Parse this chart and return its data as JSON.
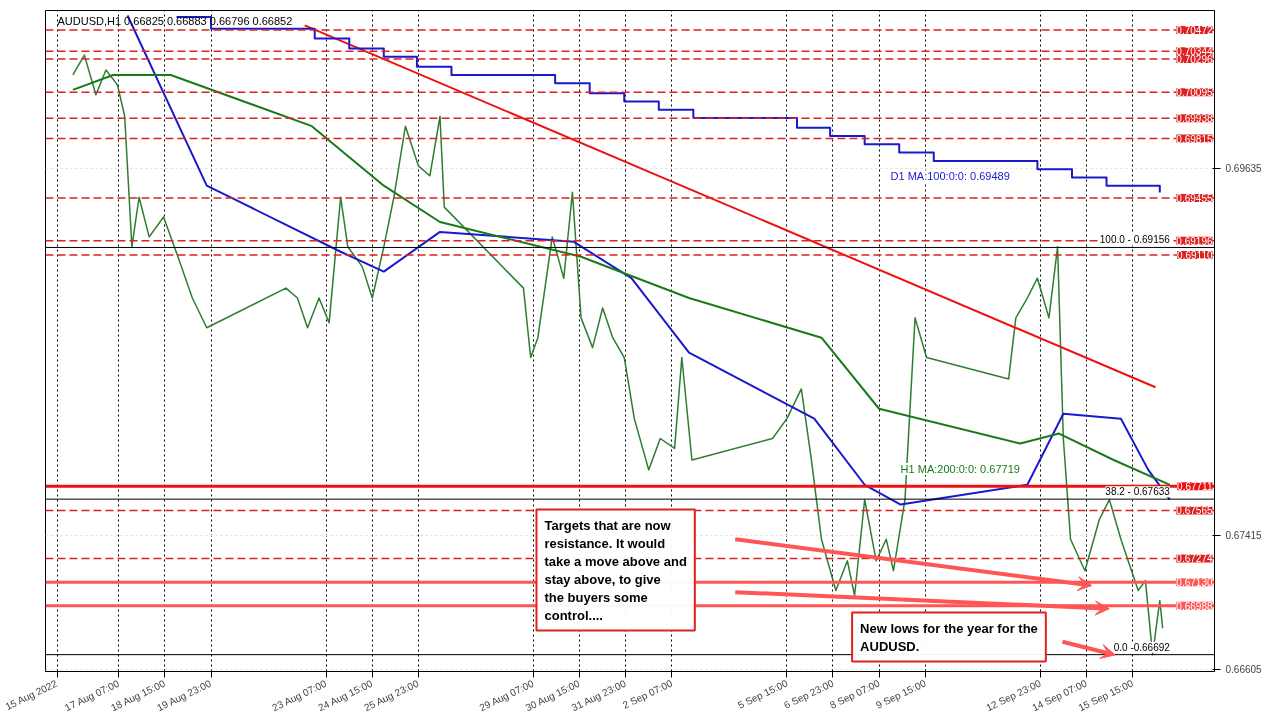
{
  "chart_data": {
    "type": "line",
    "title": "AUDUSD,H1 0.66825 0.66883 0.66796 0.66852",
    "xlim": [
      "2022-08-15T04:00",
      "2022-09-18T00:00"
    ],
    "ylim": [
      0.6659,
      0.7059
    ],
    "xticks": [
      {
        "value": "2022-08-15T12:00",
        "label": "15 Aug 2022"
      },
      {
        "value": "2022-08-17T07:00",
        "label": "17 Aug 07:00"
      },
      {
        "value": "2022-08-18T15:00",
        "label": "18 Aug 15:00"
      },
      {
        "value": "2022-08-19T23:00",
        "label": "19 Aug 23:00"
      },
      {
        "value": "2022-08-23T07:00",
        "label": "23 Aug 07:00"
      },
      {
        "value": "2022-08-24T15:00",
        "label": "24 Aug 15:00"
      },
      {
        "value": "2022-08-25T23:00",
        "label": "25 Aug 23:00"
      },
      {
        "value": "2022-08-29T07:00",
        "label": "29 Aug 07:00"
      },
      {
        "value": "2022-08-30T15:00",
        "label": "30 Aug 15:00"
      },
      {
        "value": "2022-08-31T23:00",
        "label": "31 Aug 23:00"
      },
      {
        "value": "2022-09-02T07:00",
        "label": "2 Sep 07:00"
      },
      {
        "value": "2022-09-05T15:00",
        "label": "5 Sep 15:00"
      },
      {
        "value": "2022-09-06T23:00",
        "label": "6 Sep 23:00"
      },
      {
        "value": "2022-09-08T07:00",
        "label": "8 Sep 07:00"
      },
      {
        "value": "2022-09-09T15:00",
        "label": "9 Sep 15:00"
      },
      {
        "value": "2022-09-12T23:00",
        "label": "12 Sep 23:00"
      },
      {
        "value": "2022-09-14T07:00",
        "label": "14 Sep 07:00"
      },
      {
        "value": "2022-09-15T15:00",
        "label": "15 Sep 15:00"
      }
    ],
    "yticks": [
      0.66605,
      0.67415,
      0.69635
    ],
    "grid": true,
    "line_style": "solid",
    "series": [
      {
        "color": "#2e7d32",
        "x": [
          "2022-08-15T23:00",
          "2022-08-16T07:00",
          "2022-08-16T15:00",
          "2022-08-16T22:00",
          "2022-08-17T06:00",
          "2022-08-17T11:00",
          "2022-08-17T16:00",
          "2022-08-17T21:00",
          "2022-08-18T04:00",
          "2022-08-18T14:00",
          "2022-08-19T00:00",
          "2022-08-19T10:00",
          "2022-08-19T20:00",
          "2022-08-22T03:00",
          "2022-08-22T11:00",
          "2022-08-22T18:00",
          "2022-08-23T02:00",
          "2022-08-23T09:00",
          "2022-08-23T17:00",
          "2022-08-23T22:00",
          "2022-08-24T08:00",
          "2022-08-24T15:00",
          "2022-08-24T23:00",
          "2022-08-25T06:00",
          "2022-08-25T14:00",
          "2022-08-25T23:00",
          "2022-08-26T07:00",
          "2022-08-26T14:00",
          "2022-08-26T17:00",
          "2022-08-29T00:00",
          "2022-08-29T05:00",
          "2022-08-29T10:00",
          "2022-08-29T20:00",
          "2022-08-30T04:00",
          "2022-08-30T10:00",
          "2022-08-30T16:00",
          "2022-08-31T00:00",
          "2022-08-31T07:00",
          "2022-08-31T14:00",
          "2022-08-31T22:00",
          "2022-09-01T05:00",
          "2022-09-01T15:00",
          "2022-09-01T23:00",
          "2022-09-02T09:00",
          "2022-09-02T14:00",
          "2022-09-02T21:00",
          "2022-09-05T05:00",
          "2022-09-05T15:00",
          "2022-09-06T01:00",
          "2022-09-06T08:00",
          "2022-09-06T15:00",
          "2022-09-07T01:00",
          "2022-09-07T09:00",
          "2022-09-07T14:00",
          "2022-09-07T21:00",
          "2022-09-08T05:00",
          "2022-09-08T12:00",
          "2022-09-08T17:00",
          "2022-09-09T01:00",
          "2022-09-09T08:00",
          "2022-09-09T16:00",
          "2022-09-12T01:00",
          "2022-09-12T06:00",
          "2022-09-12T14:00",
          "2022-09-12T21:00",
          "2022-09-13T05:00",
          "2022-09-13T11:00",
          "2022-09-13T15:00",
          "2022-09-13T20:00",
          "2022-09-14T06:00",
          "2022-09-14T16:00",
          "2022-09-14T23:00",
          "2022-09-15T07:00",
          "2022-09-15T12:00",
          "2022-09-15T19:00",
          "2022-09-16T00:00",
          "2022-09-16T05:00",
          "2022-09-16T10:00",
          "2022-09-16T12:00"
        ],
        "values": [
          0.702,
          0.7032,
          0.7008,
          0.7023,
          0.7014,
          0.6995,
          0.6916,
          0.6946,
          0.6922,
          0.6934,
          0.691,
          0.6885,
          0.6867,
          0.6891,
          0.6885,
          0.6867,
          0.6885,
          0.687,
          0.6946,
          0.6916,
          0.6904,
          0.6885,
          0.6916,
          0.6946,
          0.6989,
          0.6965,
          0.6959,
          0.6995,
          0.694,
          0.6891,
          0.6849,
          0.6861,
          0.6922,
          0.6897,
          0.6949,
          0.6873,
          0.6855,
          0.6879,
          0.6861,
          0.6849,
          0.6812,
          0.6781,
          0.68,
          0.6794,
          0.6849,
          0.6787,
          0.68,
          0.6812,
          0.683,
          0.6787,
          0.6739,
          0.6708,
          0.6726,
          0.6705,
          0.6763,
          0.6726,
          0.6739,
          0.672,
          0.6763,
          0.6873,
          0.6849,
          0.6836,
          0.6873,
          0.6885,
          0.6897,
          0.6873,
          0.6916,
          0.68,
          0.6739,
          0.672,
          0.6751,
          0.6763,
          0.6739,
          0.6726,
          0.6708,
          0.6714,
          0.66692,
          0.6702,
          0.66852
        ]
      },
      {
        "color": "#1a1acc",
        "x": [
          "2022-08-17T13:00",
          "2022-08-19T20:00",
          "2022-08-23T17:00",
          "2022-08-24T23:00",
          "2022-08-26T14:00",
          "2022-08-30T11:00",
          "2022-09-01T03:00",
          "2022-09-02T19:00",
          "2022-09-06T10:00",
          "2022-09-07T21:00",
          "2022-09-08T22:00",
          "2022-09-12T14:00",
          "2022-09-13T15:00",
          "2022-09-15T07:00",
          "2022-09-16T02:00",
          "2022-09-16T17:00"
        ],
        "values": [
          0.7056,
          0.6953,
          0.6913,
          0.6901,
          0.6925,
          0.6919,
          0.6897,
          0.6852,
          0.6812,
          0.6772,
          0.676,
          0.6772,
          0.6815,
          0.6812,
          0.6781,
          0.6763
        ]
      },
      {
        "name": "H1 MA:200:0:0: 0.67719",
        "color": "#1a7a1a",
        "x": [
          "2022-08-15T23:00",
          "2022-08-17T03:00",
          "2022-08-18T19:00",
          "2022-08-22T21:00",
          "2022-08-24T23:00",
          "2022-08-26T14:00",
          "2022-08-30T16:00",
          "2022-09-02T19:00",
          "2022-09-06T15:00",
          "2022-09-08T07:00",
          "2022-09-12T09:00",
          "2022-09-13T12:00",
          "2022-09-15T02:00",
          "2022-09-16T17:00"
        ],
        "values": [
          0.7011,
          0.702,
          0.702,
          0.6989,
          0.6953,
          0.6931,
          0.691,
          0.6885,
          0.6861,
          0.6818,
          0.6797,
          0.6803,
          0.6787,
          0.67719
        ]
      },
      {
        "color": "#ee1111",
        "x": [
          "2022-08-22T16:00",
          "2022-09-16T07:00"
        ],
        "values": [
          0.705,
          0.6831
        ]
      },
      {
        "name": "D1 MA:100:0:0: 0.69489",
        "type": "step",
        "color": "#1a1acc",
        "x": [
          "2022-08-18T23:00",
          "2022-08-19T23:00",
          "2022-08-22T23:00",
          "2022-08-23T23:00",
          "2022-08-24T23:00",
          "2022-08-25T22:00",
          "2022-08-26T22:00",
          "2022-08-29T22:00",
          "2022-08-30T22:00",
          "2022-08-31T22:00",
          "2022-09-01T22:00",
          "2022-09-02T22:00",
          "2022-09-05T22:00",
          "2022-09-06T21:00",
          "2022-09-07T21:00",
          "2022-09-08T21:00",
          "2022-09-09T21:00",
          "2022-09-12T21:00",
          "2022-09-13T21:00",
          "2022-09-14T21:00",
          "2022-09-16T10:00"
        ],
        "values": [
          0.7055,
          0.7048,
          0.7042,
          0.7036,
          0.7031,
          0.7025,
          0.702,
          0.7015,
          0.7009,
          0.7004,
          0.6999,
          0.6994,
          0.6988,
          0.6983,
          0.6978,
          0.6973,
          0.6968,
          0.6963,
          0.6958,
          0.6953,
          0.69489
        ]
      }
    ],
    "ref_lines": [
      {
        "axis": "y",
        "value": 0.70472,
        "label": "0.70472",
        "color": "#dd2222",
        "line_style": "dashed"
      },
      {
        "axis": "y",
        "value": 0.70344,
        "label": "0.70344",
        "color": "#dd2222",
        "line_style": "dashed"
      },
      {
        "axis": "y",
        "value": 0.70296,
        "label": "0.70296",
        "color": "#dd2222",
        "line_style": "dashed"
      },
      {
        "axis": "y",
        "value": 0.70095,
        "label": "0.70095",
        "color": "#dd2222",
        "line_style": "dashed"
      },
      {
        "axis": "y",
        "value": 0.69938,
        "label": "0.69938",
        "color": "#dd2222",
        "line_style": "dashed"
      },
      {
        "axis": "y",
        "value": 0.69815,
        "label": "0.69815",
        "color": "#dd2222",
        "line_style": "dashed"
      },
      {
        "axis": "y",
        "value": 0.69455,
        "label": "0.69455",
        "color": "#dd2222",
        "line_style": "dashed"
      },
      {
        "axis": "y",
        "value": 0.69196,
        "label": "0.69196",
        "color": "#dd2222",
        "line_style": "dashed"
      },
      {
        "axis": "y",
        "value": 0.6911,
        "label": "0.69110",
        "color": "#dd2222",
        "line_style": "dashed"
      },
      {
        "axis": "y",
        "value": 0.67711,
        "label": "0.67711",
        "color": "#ee1111",
        "line_style": "solid"
      },
      {
        "axis": "y",
        "value": 0.67565,
        "label": "0.67565",
        "color": "#dd2222",
        "line_style": "dashed"
      },
      {
        "axis": "y",
        "value": 0.67274,
        "label": "0.67274",
        "color": "#dd2222",
        "line_style": "dashed"
      },
      {
        "axis": "y",
        "value": 0.6713,
        "label": "0.67130",
        "color": "#ff5555",
        "line_style": "solid"
      },
      {
        "axis": "y",
        "value": 0.66988,
        "label": "0.66988",
        "color": "#ff5555",
        "line_style": "solid"
      },
      {
        "axis": "y",
        "value": 0.69156,
        "color": "#000000",
        "line_style": "solid"
      },
      {
        "axis": "y",
        "value": 0.67633,
        "color": "#000000",
        "line_style": "solid"
      },
      {
        "axis": "y",
        "value": 0.66692,
        "color": "#000000",
        "line_style": "solid"
      }
    ],
    "annotations": [
      "Targets that are now resistance. It would take a move above and stay above, to give the buyers some control....",
      "New lows for the year for the AUDUSD.",
      {
        "text": "100.0 - 0.69156",
        "x": "2022-09-16T17:00",
        "y": 0.69156
      },
      {
        "text": "38.2 - 0.67633",
        "x": "2022-09-16T17:00",
        "y": 0.67633
      },
      {
        "text": "0.0 -0.66692",
        "x": "2022-09-16T17:00",
        "y": 0.66692
      }
    ]
  }
}
